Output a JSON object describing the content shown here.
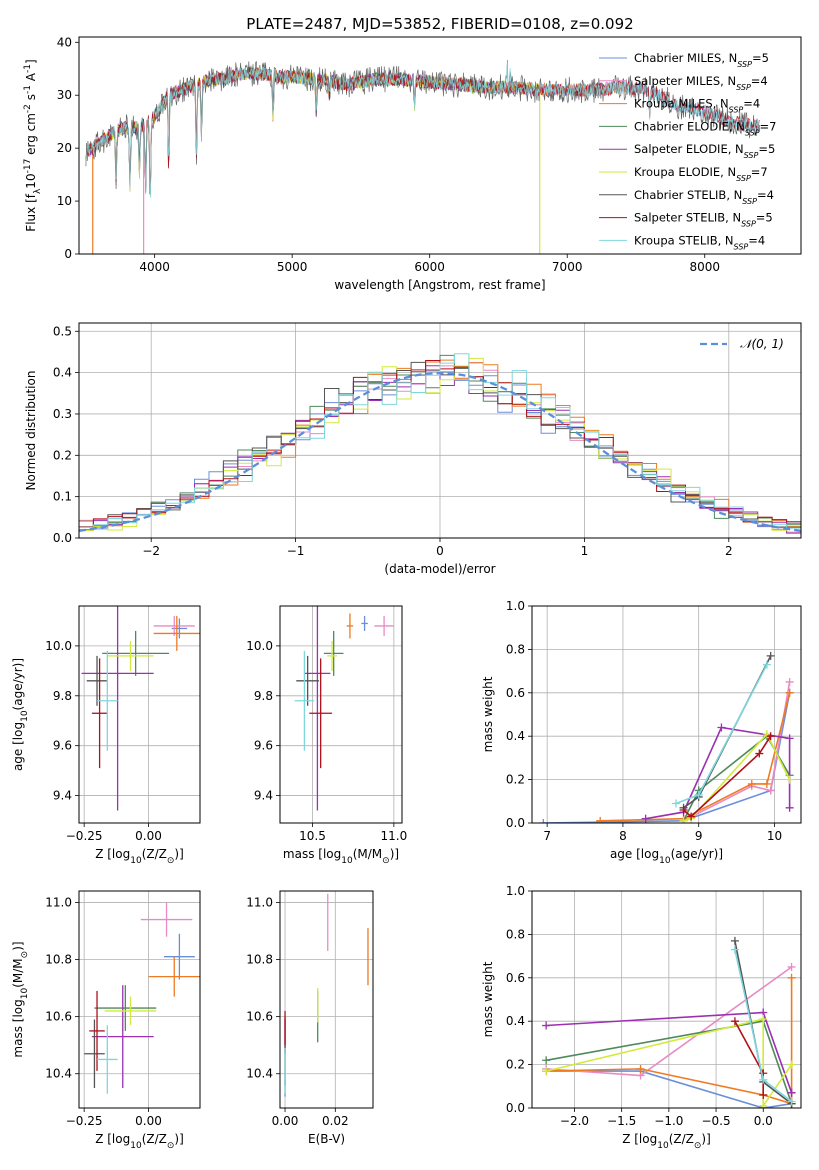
{
  "figure": {
    "title": "PLATE=2487, MJD=53852, FIBERID=0108, z=0.092"
  },
  "colors": {
    "chabrier_miles": "#6a8fd9",
    "salpeter_miles": "#e88bc4",
    "kroupa_miles": "#ee7a22",
    "chabrier_elodie": "#4e8a5a",
    "salpeter_elodie": "#9b30b0",
    "kroupa_elodie": "#d2ea3a",
    "chabrier_stelib": "#555555",
    "salpeter_stelib": "#b0101a",
    "kroupa_stelib": "#7fd7de",
    "normal_curve": "#5b8fd9",
    "grid": "#b0b0b0"
  },
  "chart_data": [
    {
      "id": "spectrum",
      "type": "line",
      "xlabel": "wavelength [Angstrom, rest frame]",
      "ylabel": "Flux [f$_{\\lambda}$10$^{-17}$ erg cm$^{-2}$ s$^{-1}$ A$^{-1}$]",
      "xlim": [
        3450,
        8700
      ],
      "ylim": [
        0,
        41
      ],
      "xticks": [
        4000,
        5000,
        6000,
        7000,
        8000
      ],
      "yticks": [
        0,
        10,
        20,
        30,
        40
      ],
      "grid": false,
      "legend_position": "top-right",
      "legend": [
        {
          "label": "Chabrier MILES, N",
          "sub": "SSP",
          "suffix": "=5",
          "color_key": "chabrier_miles"
        },
        {
          "label": "Salpeter MILES, N",
          "sub": "SSP",
          "suffix": "=4",
          "color_key": "salpeter_miles"
        },
        {
          "label": "Kroupa MILES, N",
          "sub": "SSP",
          "suffix": "=4",
          "color_key": "kroupa_miles"
        },
        {
          "label": "Chabrier ELODIE, N",
          "sub": "SSP",
          "suffix": "=7",
          "color_key": "chabrier_elodie"
        },
        {
          "label": "Salpeter ELODIE, N",
          "sub": "SSP",
          "suffix": "=5",
          "color_key": "salpeter_elodie"
        },
        {
          "label": "Kroupa ELODIE, N",
          "sub": "SSP",
          "suffix": "=7",
          "color_key": "kroupa_elodie"
        },
        {
          "label": "Chabrier STELIB, N",
          "sub": "SSP",
          "suffix": "=4",
          "color_key": "chabrier_stelib"
        },
        {
          "label": "Salpeter STELIB, N",
          "sub": "SSP",
          "suffix": "=5",
          "color_key": "salpeter_stelib"
        },
        {
          "label": "Kroupa STELIB, N",
          "sub": "SSP",
          "suffix": "=4",
          "color_key": "kroupa_stelib"
        }
      ],
      "continuum": [
        [
          3500,
          19
        ],
        [
          3600,
          21
        ],
        [
          3700,
          23
        ],
        [
          3800,
          24
        ],
        [
          3900,
          24
        ],
        [
          4000,
          26
        ],
        [
          4100,
          30
        ],
        [
          4200,
          31
        ],
        [
          4300,
          32
        ],
        [
          4400,
          33
        ],
        [
          4500,
          33
        ],
        [
          4600,
          34
        ],
        [
          4700,
          34
        ],
        [
          4800,
          34
        ],
        [
          4900,
          33.5
        ],
        [
          5000,
          33.5
        ],
        [
          5200,
          33
        ],
        [
          5400,
          32
        ],
        [
          5600,
          33
        ],
        [
          5800,
          33
        ],
        [
          6000,
          32.5
        ],
        [
          6200,
          32
        ],
        [
          6400,
          31.5
        ],
        [
          6600,
          31.5
        ],
        [
          6800,
          31
        ],
        [
          7000,
          31
        ],
        [
          7200,
          31
        ],
        [
          7400,
          31.5
        ],
        [
          7600,
          31
        ],
        [
          7800,
          28
        ],
        [
          8000,
          27
        ],
        [
          8200,
          25
        ],
        [
          8400,
          24
        ]
      ],
      "absorption_lines": [
        [
          3720,
          14
        ],
        [
          3820,
          13
        ],
        [
          3889,
          15
        ],
        [
          3934,
          12
        ],
        [
          3968,
          10
        ],
        [
          4102,
          16
        ],
        [
          4304,
          18
        ],
        [
          4340,
          22
        ],
        [
          4861,
          26
        ],
        [
          5175,
          27
        ],
        [
          5270,
          30
        ],
        [
          5890,
          28
        ],
        [
          6563,
          31
        ],
        [
          7600,
          26
        ]
      ],
      "emission_lines": [
        [
          6563,
          41
        ],
        [
          6583,
          37
        ]
      ],
      "model_dropouts": [
        {
          "series": "kroupa_miles",
          "x": 3550
        },
        {
          "series": "salpeter_miles",
          "x": 3920
        },
        {
          "series": "kroupa_elodie",
          "x": 6800
        },
        {
          "series": "kroupa_miles",
          "x": 7420
        }
      ],
      "series_ranges": [
        {
          "key": "chabrier_miles",
          "x": [
            3500,
            8400
          ]
        },
        {
          "key": "salpeter_miles",
          "x": [
            3920,
            7430
          ]
        },
        {
          "key": "kroupa_miles",
          "x": [
            3550,
            7420
          ]
        },
        {
          "key": "chabrier_elodie",
          "x": [
            3500,
            6800
          ]
        },
        {
          "key": "salpeter_elodie",
          "x": [
            3500,
            6800
          ]
        },
        {
          "key": "kroupa_elodie",
          "x": [
            3500,
            6800
          ]
        },
        {
          "key": "chabrier_stelib",
          "x": [
            3500,
            8400
          ]
        },
        {
          "key": "salpeter_stelib",
          "x": [
            3500,
            8400
          ]
        },
        {
          "key": "kroupa_stelib",
          "x": [
            3500,
            8400
          ]
        }
      ]
    },
    {
      "id": "residual_hist",
      "type": "line",
      "xlabel": "(data-model)/error",
      "ylabel": "Normed distribution",
      "xlim": [
        -2.5,
        2.5
      ],
      "ylim": [
        0,
        0.52
      ],
      "xticks": [
        -2,
        -1,
        0,
        1,
        2
      ],
      "yticks": [
        0.0,
        0.1,
        0.2,
        0.3,
        0.4,
        0.5
      ],
      "grid": true,
      "bin_width": 0.1,
      "legend_position": "top-right",
      "legend": [
        {
          "label": "𝒩(0, 1)",
          "color_key": "normal_curve",
          "dashed": true
        }
      ]
    },
    {
      "id": "age_vs_Z",
      "type": "scatter",
      "xlabel": "Z [log$_{10}$(Z/Z$_{\\odot}$)]",
      "ylabel": "age  [log$_{10}$(age/yr)]",
      "xlim": [
        -0.27,
        0.2
      ],
      "ylim": [
        9.29,
        10.16
      ],
      "xticks": [
        -0.25,
        0.0
      ],
      "yticks": [
        9.4,
        9.6,
        9.8,
        10.0
      ],
      "grid": true,
      "points": [
        {
          "key": "chabrier_miles",
          "x": 0.12,
          "y": 10.07,
          "xerr": 0.03,
          "yerr": 0.04
        },
        {
          "key": "salpeter_miles",
          "x": 0.1,
          "y": 10.08,
          "xerr": 0.08,
          "yerr": 0.04
        },
        {
          "key": "kroupa_miles",
          "x": 0.11,
          "y": 10.05,
          "xerr": 0.09,
          "yerr": 0.07
        },
        {
          "key": "chabrier_elodie",
          "x": -0.05,
          "y": 9.97,
          "xerr": 0.13,
          "yerr": 0.09
        },
        {
          "key": "salpeter_elodie",
          "x": -0.12,
          "y": 9.89,
          "xerr": 0.14,
          "yerr": 0.55
        },
        {
          "key": "kroupa_elodie",
          "x": -0.07,
          "y": 9.96,
          "xerr": 0.09,
          "yerr": 0.06
        },
        {
          "key": "chabrier_stelib",
          "x": -0.2,
          "y": 9.86,
          "xerr": 0.04,
          "yerr": 0.1
        },
        {
          "key": "salpeter_stelib",
          "x": -0.19,
          "y": 9.73,
          "xerr": 0.03,
          "yerr": 0.22
        },
        {
          "key": "kroupa_stelib",
          "x": -0.16,
          "y": 9.78,
          "xerr": 0.04,
          "yerr": 0.2
        }
      ]
    },
    {
      "id": "age_vs_mass",
      "type": "scatter",
      "xlabel": "mass [log$_{10}$(M/M$_{\\odot}$)]",
      "ylabel": "",
      "xlim": [
        10.3,
        11.05
      ],
      "ylim": [
        9.29,
        10.16
      ],
      "xticks": [
        10.5,
        11.0
      ],
      "yticks": [
        9.4,
        9.6,
        9.8,
        10.0
      ],
      "grid": true,
      "points": [
        {
          "key": "chabrier_miles",
          "x": 10.82,
          "y": 10.09,
          "xerr": 0.02,
          "yerr": 0.03
        },
        {
          "key": "salpeter_miles",
          "x": 10.94,
          "y": 10.08,
          "xerr": 0.06,
          "yerr": 0.04
        },
        {
          "key": "kroupa_miles",
          "x": 10.73,
          "y": 10.08,
          "xerr": 0.02,
          "yerr": 0.05
        },
        {
          "key": "chabrier_elodie",
          "x": 10.63,
          "y": 9.97,
          "xerr": 0.06,
          "yerr": 0.09
        },
        {
          "key": "salpeter_elodie",
          "x": 10.53,
          "y": 9.89,
          "xerr": 0.08,
          "yerr": 0.55
        },
        {
          "key": "kroupa_elodie",
          "x": 10.62,
          "y": 9.96,
          "xerr": 0.03,
          "yerr": 0.06
        },
        {
          "key": "chabrier_stelib",
          "x": 10.47,
          "y": 9.86,
          "xerr": 0.07,
          "yerr": 0.1
        },
        {
          "key": "salpeter_stelib",
          "x": 10.55,
          "y": 9.73,
          "xerr": 0.07,
          "yerr": 0.22
        },
        {
          "key": "kroupa_stelib",
          "x": 10.45,
          "y": 9.78,
          "xerr": 0.06,
          "yerr": 0.2
        }
      ]
    },
    {
      "id": "weight_vs_age",
      "type": "line",
      "xlabel": "age  [log$_{10}$(age/yr)]",
      "ylabel": "mass weight",
      "xlim": [
        6.8,
        10.35
      ],
      "ylim": [
        0,
        1.0
      ],
      "xticks": [
        7,
        8,
        9,
        10
      ],
      "yticks": [
        0.0,
        0.2,
        0.4,
        0.6,
        0.8,
        1.0
      ],
      "grid": true,
      "series": [
        {
          "key": "chabrier_miles",
          "x": [
            6.95,
            8.8,
            9.95,
            10.2
          ],
          "y": [
            0.0,
            0.01,
            0.15,
            0.6
          ]
        },
        {
          "key": "salpeter_miles",
          "x": [
            8.8,
            9.7,
            9.95,
            10.2
          ],
          "y": [
            0.01,
            0.17,
            0.15,
            0.65
          ]
        },
        {
          "key": "kroupa_miles",
          "x": [
            7.7,
            8.8,
            9.7,
            9.9,
            10.2
          ],
          "y": [
            0.01,
            0.02,
            0.18,
            0.18,
            0.6
          ]
        },
        {
          "key": "chabrier_elodie",
          "x": [
            8.8,
            9.0,
            9.9,
            10.2
          ],
          "y": [
            0.01,
            0.15,
            0.4,
            0.22
          ]
        },
        {
          "key": "salpeter_elodie",
          "x": [
            8.3,
            8.8,
            9.3,
            10.2,
            10.2
          ],
          "y": [
            0.02,
            0.05,
            0.44,
            0.39,
            0.07
          ]
        },
        {
          "key": "kroupa_elodie",
          "x": [
            8.8,
            8.9,
            9.9,
            10.2
          ],
          "y": [
            0.01,
            0.02,
            0.41,
            0.2
          ]
        },
        {
          "key": "chabrier_stelib",
          "x": [
            8.8,
            9.0,
            9.95
          ],
          "y": [
            0.07,
            0.12,
            0.77
          ]
        },
        {
          "key": "salpeter_stelib",
          "x": [
            8.8,
            8.9,
            9.8,
            9.95
          ],
          "y": [
            0.06,
            0.03,
            0.32,
            0.4
          ]
        },
        {
          "key": "kroupa_stelib",
          "x": [
            8.7,
            9.0,
            9.9
          ],
          "y": [
            0.09,
            0.13,
            0.73
          ]
        }
      ]
    },
    {
      "id": "mass_vs_Z",
      "type": "scatter",
      "xlabel": "Z [log$_{10}$(Z/Z$_{\\odot}$)]",
      "ylabel": "mass [log$_{10}$(M/M$_{\\odot}$)]",
      "xlim": [
        -0.27,
        0.2
      ],
      "ylim": [
        10.28,
        11.04
      ],
      "xticks": [
        -0.25,
        0.0
      ],
      "yticks": [
        10.4,
        10.6,
        10.8,
        11.0
      ],
      "grid": true,
      "points": [
        {
          "key": "chabrier_miles",
          "x": 0.12,
          "y": 10.81,
          "xerr": 0.06,
          "yerr": 0.08
        },
        {
          "key": "salpeter_miles",
          "x": 0.07,
          "y": 10.94,
          "xerr": 0.1,
          "yerr": 0.06
        },
        {
          "key": "kroupa_miles",
          "x": 0.1,
          "y": 10.74,
          "xerr": 0.1,
          "yerr": 0.07
        },
        {
          "key": "chabrier_elodie",
          "x": -0.09,
          "y": 10.63,
          "xerr": 0.12,
          "yerr": 0.08
        },
        {
          "key": "salpeter_elodie",
          "x": -0.1,
          "y": 10.53,
          "xerr": 0.12,
          "yerr": 0.18
        },
        {
          "key": "kroupa_elodie",
          "x": -0.07,
          "y": 10.62,
          "xerr": 0.1,
          "yerr": 0.05
        },
        {
          "key": "chabrier_stelib",
          "x": -0.21,
          "y": 10.47,
          "xerr": 0.04,
          "yerr": 0.12
        },
        {
          "key": "salpeter_stelib",
          "x": -0.2,
          "y": 10.55,
          "xerr": 0.03,
          "yerr": 0.14
        },
        {
          "key": "kroupa_stelib",
          "x": -0.16,
          "y": 10.45,
          "xerr": 0.04,
          "yerr": 0.12
        }
      ]
    },
    {
      "id": "mass_vs_ebv",
      "type": "scatter",
      "xlabel": "E(B-V)",
      "ylabel": "",
      "xlim": [
        -0.002,
        0.035
      ],
      "ylim": [
        10.28,
        11.04
      ],
      "xticks": [
        0.0,
        0.02
      ],
      "yticks": [
        10.4,
        10.6,
        10.8,
        11.0
      ],
      "grid": true,
      "points": [
        {
          "key": "chabrier_miles",
          "x": 0.0,
          "y": 10.35,
          "xerr": 0,
          "yerr": 0.03
        },
        {
          "key": "salpeter_miles",
          "x": 0.017,
          "y": 10.93,
          "xerr": 0,
          "yerr": 0.1
        },
        {
          "key": "kroupa_miles",
          "x": 0.033,
          "y": 10.81,
          "xerr": 0,
          "yerr": 0.1
        },
        {
          "key": "chabrier_elodie",
          "x": 0.013,
          "y": 10.6,
          "xerr": 0,
          "yerr": 0.09
        },
        {
          "key": "salpeter_elodie",
          "x": 0.0,
          "y": 10.53,
          "xerr": 0,
          "yerr": 0.06
        },
        {
          "key": "kroupa_elodie",
          "x": 0.013,
          "y": 10.64,
          "xerr": 0,
          "yerr": 0.06
        },
        {
          "key": "chabrier_stelib",
          "x": 0.0,
          "y": 10.48,
          "xerr": 0,
          "yerr": 0.12
        },
        {
          "key": "salpeter_stelib",
          "x": 0.0,
          "y": 10.56,
          "xerr": 0,
          "yerr": 0.06
        },
        {
          "key": "kroupa_stelib",
          "x": 0.0,
          "y": 10.41,
          "xerr": 0,
          "yerr": 0.08
        }
      ]
    },
    {
      "id": "weight_vs_Z",
      "type": "line",
      "xlabel": "Z [log$_{10}$(Z/Z$_{\\odot}$)]",
      "ylabel": "mass weight",
      "xlim": [
        -2.45,
        0.4
      ],
      "ylim": [
        0,
        1.0
      ],
      "xticks": [
        -2.0,
        -1.5,
        -1.0,
        -0.5,
        0.0
      ],
      "yticks": [
        0.0,
        0.2,
        0.4,
        0.6,
        0.8,
        1.0
      ],
      "grid": true,
      "series": [
        {
          "key": "chabrier_miles",
          "x": [
            -2.3,
            -1.3,
            0.0,
            0.3
          ],
          "y": [
            0.17,
            0.17,
            0.0,
            0.02
          ]
        },
        {
          "key": "salpeter_miles",
          "x": [
            -2.3,
            -1.3,
            0.3
          ],
          "y": [
            0.18,
            0.15,
            0.65
          ]
        },
        {
          "key": "kroupa_miles",
          "x": [
            -2.3,
            -1.3,
            0.0,
            0.3,
            0.3
          ],
          "y": [
            0.17,
            0.18,
            0.06,
            0.02,
            0.6
          ]
        },
        {
          "key": "chabrier_elodie",
          "x": [
            -2.3,
            0.0,
            0.3
          ],
          "y": [
            0.22,
            0.4,
            0.02
          ]
        },
        {
          "key": "salpeter_elodie",
          "x": [
            -2.3,
            0.0,
            0.3,
            0.3
          ],
          "y": [
            0.38,
            0.44,
            0.07,
            0.07
          ]
        },
        {
          "key": "kroupa_elodie",
          "x": [
            -2.3,
            0.0,
            0.0,
            0.3
          ],
          "y": [
            0.17,
            0.41,
            0.01,
            0.2
          ]
        },
        {
          "key": "chabrier_stelib",
          "x": [
            -0.3,
            0.0,
            0.3
          ],
          "y": [
            0.77,
            0.12,
            0.02
          ]
        },
        {
          "key": "salpeter_stelib",
          "x": [
            -0.3,
            0.0,
            0.0
          ],
          "y": [
            0.4,
            0.16,
            0.06
          ]
        },
        {
          "key": "kroupa_stelib",
          "x": [
            -0.3,
            0.0,
            0.3
          ],
          "y": [
            0.73,
            0.13,
            0.03
          ]
        }
      ]
    }
  ]
}
